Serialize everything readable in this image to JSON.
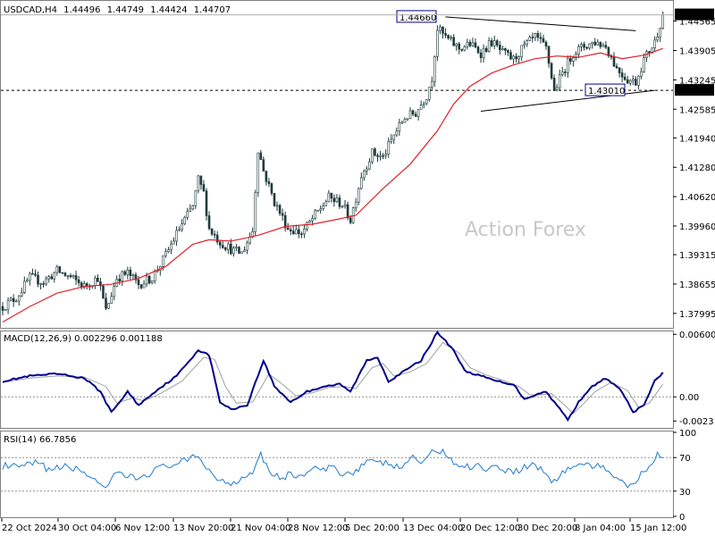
{
  "header": {
    "symbol": "USDCAD,H4",
    "open": "1.44496",
    "high": "1.44749",
    "low": "1.44424",
    "close": "1.44707"
  },
  "watermark": "Action Forex",
  "colors": {
    "candles": "#1e3a3a",
    "ma": "#e0202a",
    "macd": "#00008b",
    "signal": "#a0a0a0",
    "rsi": "#1e7bd0",
    "trendline": "#000000",
    "price_tag_bg": "#000000",
    "level_tag_border": "#00008b"
  },
  "chart_data": [
    {
      "type": "candlestick",
      "symbol": "USDCAD",
      "timeframe": "H4",
      "ylim": [
        1.3769,
        1.45
      ],
      "y_ticks": [
        1.44565,
        1.43905,
        1.43245,
        1.42585,
        1.4194,
        1.4128,
        1.4062,
        1.3996,
        1.39315,
        1.38655,
        1.37995
      ],
      "x_ticks": [
        "22 Oct 2024",
        "30 Oct 04:00",
        "6 Nov 12:00",
        "13 Nov 20:00",
        "21 Nov 04:00",
        "28 Nov 12:00",
        "5 Dec 20:00",
        "13 Dec 04:00",
        "20 Dec 12:00",
        "30 Dec 20:00",
        "8 Jan 04:00",
        "15 Jan 12:00"
      ],
      "price_path": [
        {
          "x": 0,
          "close": 1.3815
        },
        {
          "x": 5,
          "close": 1.3835
        },
        {
          "x": 10,
          "close": 1.388
        },
        {
          "x": 15,
          "close": 1.387
        },
        {
          "x": 20,
          "close": 1.3895
        },
        {
          "x": 25,
          "close": 1.388
        },
        {
          "x": 30,
          "close": 1.386
        },
        {
          "x": 35,
          "close": 1.388
        },
        {
          "x": 38,
          "close": 1.3805
        },
        {
          "x": 42,
          "close": 1.388
        },
        {
          "x": 46,
          "close": 1.389
        },
        {
          "x": 50,
          "close": 1.3865
        },
        {
          "x": 55,
          "close": 1.388
        },
        {
          "x": 60,
          "close": 1.393
        },
        {
          "x": 65,
          "close": 1.399
        },
        {
          "x": 70,
          "close": 1.404
        },
        {
          "x": 72,
          "close": 1.41
        },
        {
          "x": 74,
          "close": 1.407
        },
        {
          "x": 76,
          "close": 1.399
        },
        {
          "x": 80,
          "close": 1.396
        },
        {
          "x": 85,
          "close": 1.394
        },
        {
          "x": 88,
          "close": 1.3935
        },
        {
          "x": 92,
          "close": 1.3985
        },
        {
          "x": 94,
          "close": 1.417
        },
        {
          "x": 96,
          "close": 1.412
        },
        {
          "x": 100,
          "close": 1.405
        },
        {
          "x": 105,
          "close": 1.399
        },
        {
          "x": 110,
          "close": 1.398
        },
        {
          "x": 115,
          "close": 1.402
        },
        {
          "x": 120,
          "close": 1.406
        },
        {
          "x": 125,
          "close": 1.4045
        },
        {
          "x": 128,
          "close": 1.401
        },
        {
          "x": 132,
          "close": 1.411
        },
        {
          "x": 136,
          "close": 1.416
        },
        {
          "x": 140,
          "close": 1.415
        },
        {
          "x": 144,
          "close": 1.42
        },
        {
          "x": 148,
          "close": 1.424
        },
        {
          "x": 152,
          "close": 1.425
        },
        {
          "x": 156,
          "close": 1.429
        },
        {
          "x": 158,
          "close": 1.433
        },
        {
          "x": 160,
          "close": 1.444
        },
        {
          "x": 163,
          "close": 1.442
        },
        {
          "x": 168,
          "close": 1.4395
        },
        {
          "x": 172,
          "close": 1.4405
        },
        {
          "x": 176,
          "close": 1.4385
        },
        {
          "x": 180,
          "close": 1.441
        },
        {
          "x": 184,
          "close": 1.4385
        },
        {
          "x": 188,
          "close": 1.437
        },
        {
          "x": 192,
          "close": 1.44
        },
        {
          "x": 196,
          "close": 1.442
        },
        {
          "x": 200,
          "close": 1.4395
        },
        {
          "x": 203,
          "close": 1.43
        },
        {
          "x": 206,
          "close": 1.434
        },
        {
          "x": 210,
          "close": 1.4385
        },
        {
          "x": 214,
          "close": 1.44
        },
        {
          "x": 218,
          "close": 1.441
        },
        {
          "x": 222,
          "close": 1.44
        },
        {
          "x": 226,
          "close": 1.435
        },
        {
          "x": 230,
          "close": 1.4325
        },
        {
          "x": 233,
          "close": 1.432
        },
        {
          "x": 236,
          "close": 1.437
        },
        {
          "x": 240,
          "close": 1.441
        },
        {
          "x": 243,
          "close": 1.447
        }
      ],
      "moving_average_path": [
        {
          "x": 0,
          "value": 1.378
        },
        {
          "x": 10,
          "value": 1.3815
        },
        {
          "x": 20,
          "value": 1.3845
        },
        {
          "x": 30,
          "value": 1.386
        },
        {
          "x": 40,
          "value": 1.3865
        },
        {
          "x": 50,
          "value": 1.3878
        },
        {
          "x": 60,
          "value": 1.3905
        },
        {
          "x": 70,
          "value": 1.3955
        },
        {
          "x": 76,
          "value": 1.3965
        },
        {
          "x": 84,
          "value": 1.3962
        },
        {
          "x": 94,
          "value": 1.3975
        },
        {
          "x": 104,
          "value": 1.3995
        },
        {
          "x": 114,
          "value": 1.4
        },
        {
          "x": 124,
          "value": 1.4012
        },
        {
          "x": 130,
          "value": 1.402
        },
        {
          "x": 140,
          "value": 1.408
        },
        {
          "x": 150,
          "value": 1.4135
        },
        {
          "x": 160,
          "value": 1.421
        },
        {
          "x": 166,
          "value": 1.427
        },
        {
          "x": 172,
          "value": 1.431
        },
        {
          "x": 180,
          "value": 1.434
        },
        {
          "x": 188,
          "value": 1.4358
        },
        {
          "x": 196,
          "value": 1.4372
        },
        {
          "x": 204,
          "value": 1.4378
        },
        {
          "x": 212,
          "value": 1.4375
        },
        {
          "x": 220,
          "value": 1.4385
        },
        {
          "x": 228,
          "value": 1.4372
        },
        {
          "x": 236,
          "value": 1.438
        },
        {
          "x": 243,
          "value": 1.4395
        }
      ],
      "levels": [
        {
          "label": "1.44660",
          "value": 1.4466,
          "style": "tag"
        },
        {
          "label": "1.43010",
          "value": 1.4301,
          "style": "dashed"
        }
      ],
      "current_price": {
        "label": "1.44707",
        "value": 1.44707
      },
      "trendlines": [
        {
          "from": {
            "x": 163,
            "value": 1.4466
          },
          "to": {
            "x": 233,
            "value": 1.4435
          }
        },
        {
          "from": {
            "x": 176,
            "value": 1.4254
          },
          "to": {
            "x": 240,
            "value": 1.4301
          }
        }
      ]
    },
    {
      "type": "line",
      "title": "MACD(12,26,9) 0.002296 0.001188",
      "ylim": [
        -0.0029,
        0.0062
      ],
      "y_ticks": [
        {
          "label": "0.006007",
          "value": 0.006007
        },
        {
          "label": "0.00",
          "value": 0.0
        },
        {
          "label": "-0.002318",
          "value": -0.002318
        }
      ],
      "zero_line": 0.0,
      "macd_path": [
        {
          "x": 0,
          "value": 0.0015
        },
        {
          "x": 10,
          "value": 0.002
        },
        {
          "x": 20,
          "value": 0.0022
        },
        {
          "x": 30,
          "value": 0.0018
        },
        {
          "x": 36,
          "value": 0.0005
        },
        {
          "x": 40,
          "value": -0.0015
        },
        {
          "x": 46,
          "value": 0.0005
        },
        {
          "x": 50,
          "value": -0.0008
        },
        {
          "x": 56,
          "value": 0.0005
        },
        {
          "x": 64,
          "value": 0.002
        },
        {
          "x": 72,
          "value": 0.0045
        },
        {
          "x": 76,
          "value": 0.004
        },
        {
          "x": 80,
          "value": -0.0005
        },
        {
          "x": 84,
          "value": -0.0012
        },
        {
          "x": 90,
          "value": -0.0008
        },
        {
          "x": 96,
          "value": 0.0035
        },
        {
          "x": 100,
          "value": 0.001
        },
        {
          "x": 106,
          "value": -0.0005
        },
        {
          "x": 112,
          "value": 0.0005
        },
        {
          "x": 118,
          "value": 0.001
        },
        {
          "x": 124,
          "value": 0.0012
        },
        {
          "x": 128,
          "value": 0.0005
        },
        {
          "x": 134,
          "value": 0.0035
        },
        {
          "x": 138,
          "value": 0.0038
        },
        {
          "x": 142,
          "value": 0.0015
        },
        {
          "x": 148,
          "value": 0.0025
        },
        {
          "x": 154,
          "value": 0.0035
        },
        {
          "x": 160,
          "value": 0.0062
        },
        {
          "x": 166,
          "value": 0.0045
        },
        {
          "x": 170,
          "value": 0.0025
        },
        {
          "x": 176,
          "value": 0.002
        },
        {
          "x": 182,
          "value": 0.0015
        },
        {
          "x": 188,
          "value": 0.0012
        },
        {
          "x": 192,
          "value": -0.0002
        },
        {
          "x": 196,
          "value": 0.0002
        },
        {
          "x": 200,
          "value": 0.0005
        },
        {
          "x": 204,
          "value": -0.0008
        },
        {
          "x": 208,
          "value": -0.0022
        },
        {
          "x": 212,
          "value": -0.0005
        },
        {
          "x": 216,
          "value": 0.0008
        },
        {
          "x": 222,
          "value": 0.0018
        },
        {
          "x": 228,
          "value": 0.0005
        },
        {
          "x": 232,
          "value": -0.0015
        },
        {
          "x": 236,
          "value": -0.0008
        },
        {
          "x": 240,
          "value": 0.0015
        },
        {
          "x": 243,
          "value": 0.0023
        }
      ],
      "signal_path": [
        {
          "x": 0,
          "value": 0.0014
        },
        {
          "x": 10,
          "value": 0.0018
        },
        {
          "x": 20,
          "value": 0.002
        },
        {
          "x": 30,
          "value": 0.0019
        },
        {
          "x": 38,
          "value": 0.001
        },
        {
          "x": 42,
          "value": -0.0006
        },
        {
          "x": 48,
          "value": -0.0001
        },
        {
          "x": 52,
          "value": -0.0004
        },
        {
          "x": 58,
          "value": 0.0003
        },
        {
          "x": 66,
          "value": 0.0015
        },
        {
          "x": 74,
          "value": 0.0038
        },
        {
          "x": 78,
          "value": 0.0036
        },
        {
          "x": 82,
          "value": 0.001
        },
        {
          "x": 86,
          "value": -0.0006
        },
        {
          "x": 92,
          "value": -0.0005
        },
        {
          "x": 98,
          "value": 0.0022
        },
        {
          "x": 102,
          "value": 0.0014
        },
        {
          "x": 108,
          "value": 0.0001
        },
        {
          "x": 114,
          "value": 0.0004
        },
        {
          "x": 120,
          "value": 0.0009
        },
        {
          "x": 126,
          "value": 0.001
        },
        {
          "x": 130,
          "value": 0.0008
        },
        {
          "x": 136,
          "value": 0.0028
        },
        {
          "x": 140,
          "value": 0.0032
        },
        {
          "x": 144,
          "value": 0.002
        },
        {
          "x": 150,
          "value": 0.0024
        },
        {
          "x": 156,
          "value": 0.0032
        },
        {
          "x": 162,
          "value": 0.0052
        },
        {
          "x": 168,
          "value": 0.0042
        },
        {
          "x": 172,
          "value": 0.0028
        },
        {
          "x": 178,
          "value": 0.0021
        },
        {
          "x": 184,
          "value": 0.0016
        },
        {
          "x": 190,
          "value": 0.001
        },
        {
          "x": 194,
          "value": 0.0002
        },
        {
          "x": 198,
          "value": 0.0002
        },
        {
          "x": 202,
          "value": 0.0003
        },
        {
          "x": 206,
          "value": -0.0006
        },
        {
          "x": 210,
          "value": -0.0016
        },
        {
          "x": 214,
          "value": -0.0006
        },
        {
          "x": 218,
          "value": 0.0005
        },
        {
          "x": 224,
          "value": 0.0014
        },
        {
          "x": 230,
          "value": 0.0006
        },
        {
          "x": 234,
          "value": -0.001
        },
        {
          "x": 238,
          "value": -0.0006
        },
        {
          "x": 243,
          "value": 0.0012
        }
      ]
    },
    {
      "type": "line",
      "title": "RSI(14) 66.7856",
      "ylim": [
        0,
        100
      ],
      "y_ticks": [
        {
          "label": "100",
          "value": 100
        },
        {
          "label": "70",
          "value": 70
        },
        {
          "label": "30",
          "value": 30
        },
        {
          "label": "0",
          "value": 0
        }
      ],
      "levels": [
        70,
        30
      ],
      "rsi_path": [
        {
          "x": 0,
          "value": 60
        },
        {
          "x": 6,
          "value": 58
        },
        {
          "x": 12,
          "value": 63
        },
        {
          "x": 18,
          "value": 55
        },
        {
          "x": 24,
          "value": 60
        },
        {
          "x": 30,
          "value": 52
        },
        {
          "x": 34,
          "value": 45
        },
        {
          "x": 38,
          "value": 30
        },
        {
          "x": 42,
          "value": 52
        },
        {
          "x": 46,
          "value": 47
        },
        {
          "x": 50,
          "value": 45
        },
        {
          "x": 56,
          "value": 55
        },
        {
          "x": 62,
          "value": 62
        },
        {
          "x": 68,
          "value": 66
        },
        {
          "x": 72,
          "value": 72
        },
        {
          "x": 76,
          "value": 55
        },
        {
          "x": 80,
          "value": 42
        },
        {
          "x": 84,
          "value": 40
        },
        {
          "x": 88,
          "value": 45
        },
        {
          "x": 92,
          "value": 55
        },
        {
          "x": 95,
          "value": 75
        },
        {
          "x": 98,
          "value": 55
        },
        {
          "x": 102,
          "value": 45
        },
        {
          "x": 106,
          "value": 50
        },
        {
          "x": 110,
          "value": 48
        },
        {
          "x": 114,
          "value": 56
        },
        {
          "x": 118,
          "value": 55
        },
        {
          "x": 122,
          "value": 58
        },
        {
          "x": 126,
          "value": 50
        },
        {
          "x": 130,
          "value": 55
        },
        {
          "x": 134,
          "value": 66
        },
        {
          "x": 138,
          "value": 62
        },
        {
          "x": 142,
          "value": 64
        },
        {
          "x": 146,
          "value": 56
        },
        {
          "x": 150,
          "value": 70
        },
        {
          "x": 154,
          "value": 65
        },
        {
          "x": 158,
          "value": 75
        },
        {
          "x": 162,
          "value": 80
        },
        {
          "x": 165,
          "value": 66
        },
        {
          "x": 170,
          "value": 58
        },
        {
          "x": 174,
          "value": 62
        },
        {
          "x": 178,
          "value": 57
        },
        {
          "x": 182,
          "value": 60
        },
        {
          "x": 186,
          "value": 54
        },
        {
          "x": 190,
          "value": 55
        },
        {
          "x": 194,
          "value": 62
        },
        {
          "x": 198,
          "value": 58
        },
        {
          "x": 202,
          "value": 40
        },
        {
          "x": 206,
          "value": 52
        },
        {
          "x": 210,
          "value": 60
        },
        {
          "x": 214,
          "value": 62
        },
        {
          "x": 218,
          "value": 60
        },
        {
          "x": 222,
          "value": 55
        },
        {
          "x": 226,
          "value": 48
        },
        {
          "x": 230,
          "value": 38
        },
        {
          "x": 233,
          "value": 40
        },
        {
          "x": 236,
          "value": 55
        },
        {
          "x": 240,
          "value": 68
        },
        {
          "x": 241,
          "value": 78
        },
        {
          "x": 243,
          "value": 67
        }
      ]
    }
  ]
}
